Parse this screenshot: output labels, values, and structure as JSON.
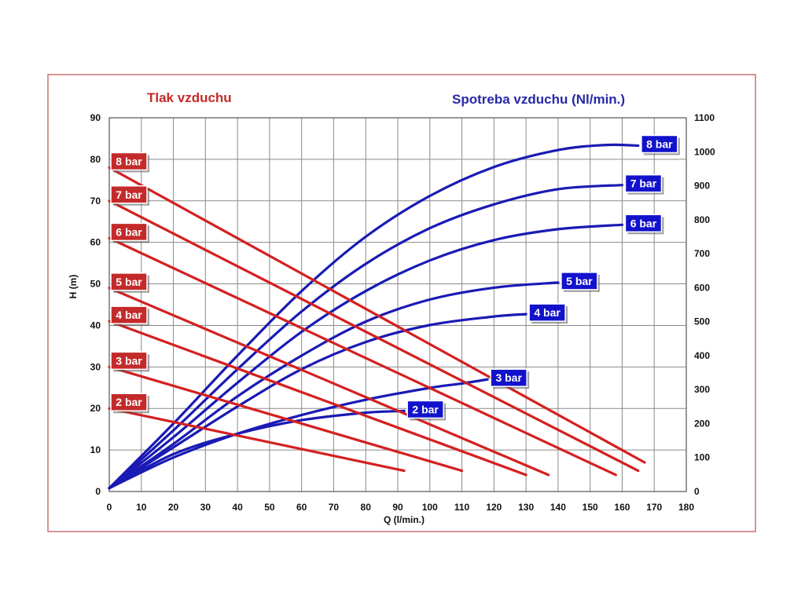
{
  "chart_data": {
    "type": "line",
    "title_left": "Tlak vzduchu",
    "title_right": "Spotreba vzduchu (Nl/min.)",
    "xlabel": "Q (l/min.)",
    "ylabel": "H (m)",
    "xlim": [
      0,
      180
    ],
    "ylim": [
      0,
      90
    ],
    "y2lim": [
      0,
      1100
    ],
    "x_ticks": [
      "0",
      "10",
      "20",
      "30",
      "40",
      "50",
      "60",
      "70",
      "80",
      "90",
      "100",
      "110",
      "120",
      "130",
      "140",
      "150",
      "160",
      "170",
      "180"
    ],
    "y_ticks": [
      "0",
      "10",
      "20",
      "30",
      "40",
      "50",
      "60",
      "70",
      "80",
      "90"
    ],
    "y2_ticks": [
      "0",
      "100",
      "200",
      "300",
      "400",
      "500",
      "600",
      "700",
      "800",
      "900",
      "1000",
      "1100"
    ],
    "grid": true,
    "colors": {
      "pressure": "#d42020",
      "consumption": "#1a1ab4",
      "frame": "#c87070",
      "pressure_badge": "#c42a2a",
      "consumption_badge": "#1212cc"
    },
    "pressure_series": [
      {
        "name": "8 bar",
        "label": "8 bar",
        "start": [
          0,
          78
        ],
        "end": [
          167,
          7
        ]
      },
      {
        "name": "7 bar",
        "label": "7 bar",
        "start": [
          0,
          70
        ],
        "end": [
          165,
          5
        ]
      },
      {
        "name": "6 bar",
        "label": "6 bar",
        "start": [
          0,
          61
        ],
        "end": [
          158,
          4
        ]
      },
      {
        "name": "5 bar",
        "label": "5 bar",
        "start": [
          0,
          49
        ],
        "end": [
          137,
          4
        ]
      },
      {
        "name": "4 bar",
        "label": "4 bar",
        "start": [
          0,
          41
        ],
        "end": [
          130,
          4
        ]
      },
      {
        "name": "3 bar",
        "label": "3 bar",
        "start": [
          0,
          30
        ],
        "end": [
          110,
          5
        ]
      },
      {
        "name": "2 bar",
        "label": "2 bar",
        "start": [
          0,
          20
        ],
        "end": [
          92,
          5
        ]
      }
    ],
    "consumption_series": [
      {
        "name": "8 bar",
        "label": "8 bar",
        "points": [
          [
            0,
            10
          ],
          [
            20,
            200
          ],
          [
            40,
            400
          ],
          [
            60,
            590
          ],
          [
            80,
            750
          ],
          [
            100,
            870
          ],
          [
            120,
            955
          ],
          [
            140,
            1005
          ],
          [
            155,
            1020
          ],
          [
            165,
            1018
          ]
        ]
      },
      {
        "name": "7 bar",
        "label": "7 bar",
        "points": [
          [
            0,
            10
          ],
          [
            20,
            180
          ],
          [
            40,
            360
          ],
          [
            60,
            530
          ],
          [
            80,
            670
          ],
          [
            100,
            775
          ],
          [
            120,
            845
          ],
          [
            140,
            890
          ],
          [
            160,
            902
          ]
        ]
      },
      {
        "name": "6 bar",
        "label": "6 bar",
        "points": [
          [
            0,
            10
          ],
          [
            20,
            160
          ],
          [
            40,
            320
          ],
          [
            60,
            470
          ],
          [
            80,
            590
          ],
          [
            100,
            680
          ],
          [
            120,
            740
          ],
          [
            140,
            772
          ],
          [
            160,
            785
          ]
        ]
      },
      {
        "name": "5 bar",
        "label": "5 bar",
        "points": [
          [
            0,
            10
          ],
          [
            20,
            140
          ],
          [
            40,
            280
          ],
          [
            60,
            400
          ],
          [
            80,
            500
          ],
          [
            100,
            565
          ],
          [
            120,
            600
          ],
          [
            140,
            615
          ]
        ]
      },
      {
        "name": "4 bar",
        "label": "4 bar",
        "points": [
          [
            0,
            10
          ],
          [
            20,
            130
          ],
          [
            40,
            250
          ],
          [
            60,
            360
          ],
          [
            80,
            440
          ],
          [
            100,
            490
          ],
          [
            120,
            515
          ],
          [
            130,
            522
          ]
        ]
      },
      {
        "name": "3 bar",
        "label": "3 bar",
        "points": [
          [
            0,
            10
          ],
          [
            20,
            100
          ],
          [
            40,
            170
          ],
          [
            60,
            225
          ],
          [
            80,
            270
          ],
          [
            100,
            305
          ],
          [
            110,
            318
          ],
          [
            118,
            330
          ]
        ]
      },
      {
        "name": "2 bar",
        "label": "2 bar",
        "points": [
          [
            0,
            10
          ],
          [
            20,
            110
          ],
          [
            40,
            170
          ],
          [
            60,
            210
          ],
          [
            80,
            232
          ],
          [
            92,
            237
          ]
        ]
      }
    ]
  }
}
